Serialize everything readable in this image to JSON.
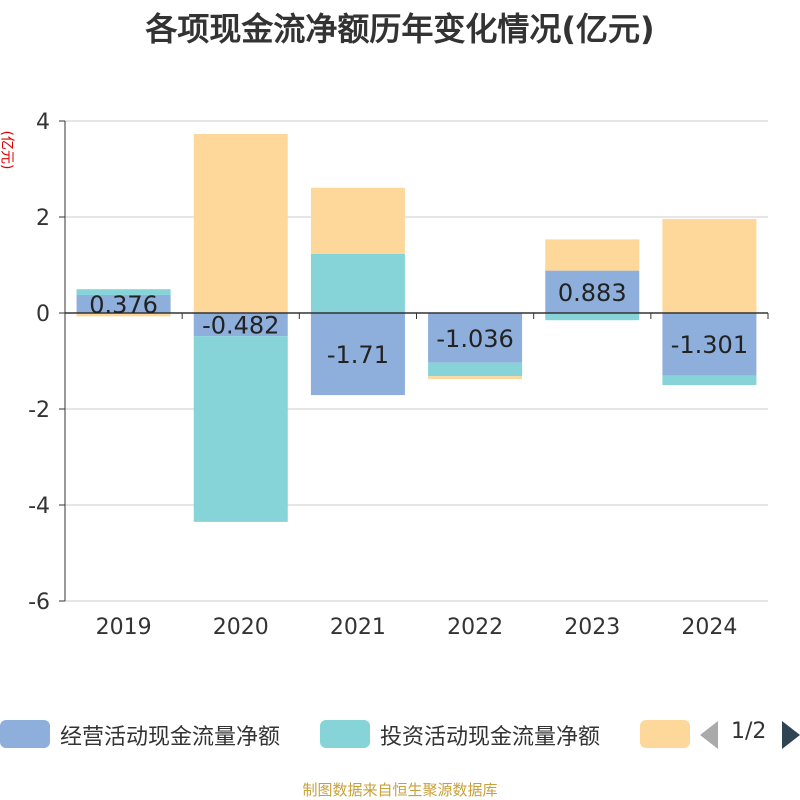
{
  "title": "各项现金流净额历年变化情况(亿元)",
  "y_unit": "(亿元)",
  "source": "制图数据来自恒生聚源数据库",
  "legend": {
    "items": [
      {
        "label": "经营活动现金流量净额",
        "color": "#8eaedb"
      },
      {
        "label": "投资活动现金流量净额",
        "color": "#86d4d8"
      },
      {
        "label": "",
        "color": "#fdd89a"
      }
    ],
    "page": "1/2"
  },
  "chart_data": {
    "type": "bar",
    "stacked": true,
    "categories": [
      "2019",
      "2020",
      "2021",
      "2022",
      "2023",
      "2024"
    ],
    "series": [
      {
        "name": "经营活动现金流量净额",
        "color": "#8eaedb",
        "values": [
          0.376,
          -0.482,
          -1.71,
          -1.036,
          0.883,
          -1.301
        ],
        "labels": [
          "0.376",
          "-0.482",
          "-1.71",
          "-1.036",
          "0.883",
          "-1.301"
        ]
      },
      {
        "name": "投资活动现金流量净额",
        "color": "#86d4d8",
        "values": [
          0.12,
          -3.87,
          1.23,
          -0.28,
          -0.15,
          -0.2
        ]
      },
      {
        "name": "",
        "color": "#fdd89a",
        "values": [
          -0.07,
          3.73,
          1.38,
          -0.06,
          0.65,
          1.96
        ]
      }
    ],
    "y_ticks": [
      4,
      2,
      0,
      -2,
      -4,
      -6
    ],
    "ylim": [
      -6,
      4
    ],
    "grid": true,
    "legend_position": "bottom"
  }
}
